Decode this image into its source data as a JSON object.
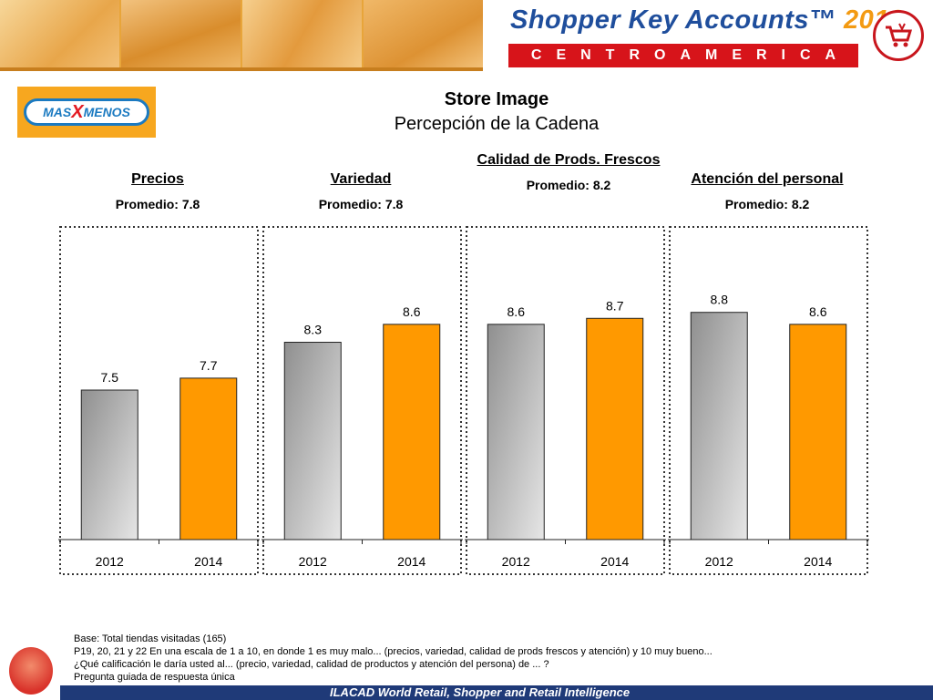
{
  "header": {
    "brand_name": "Shopper Key Accounts",
    "brand_tm": "™",
    "brand_year": "2012",
    "brand_region": "CENTROAMERICA"
  },
  "logo": {
    "part1": "MAS",
    "part2": "X",
    "part3": "MENOS"
  },
  "title": "Store Image",
  "subtitle": "Percepción de la Cadena",
  "colors": {
    "bar_2012": "#b5b5b5",
    "bar_2014": "#ff9900",
    "banner_blue": "#1f4e9c",
    "banner_red": "#d7141a",
    "footer_blue": "#1f3a78"
  },
  "chart_data": [
    {
      "type": "bar",
      "title": "Precios",
      "note": "Promedio: 7.8",
      "categories": [
        "2012",
        "2014"
      ],
      "values": [
        7.5,
        7.7
      ],
      "ylim": [
        0,
        10
      ],
      "grid": false
    },
    {
      "type": "bar",
      "title": "Variedad",
      "note": "Promedio: 7.8",
      "categories": [
        "2012",
        "2014"
      ],
      "values": [
        8.3,
        8.6
      ],
      "ylim": [
        0,
        10
      ],
      "grid": false
    },
    {
      "type": "bar",
      "title": "Calidad de Prods. Frescos",
      "note": "Promedio: 8.2",
      "categories": [
        "2012",
        "2014"
      ],
      "values": [
        8.6,
        8.7
      ],
      "ylim": [
        0,
        10
      ],
      "grid": false
    },
    {
      "type": "bar",
      "title": "Atención del personal",
      "note": "Promedio: 8.2",
      "categories": [
        "2012",
        "2014"
      ],
      "values": [
        8.8,
        8.6
      ],
      "ylim": [
        0,
        10
      ],
      "grid": false
    }
  ],
  "notes": [
    "Base: Total tiendas visitadas (165)",
    "P19, 20, 21 y 22 En una escala de 1 a 10, en donde 1 es muy malo... (precios, variedad, calidad de prods frescos y atención)  y 10 muy bueno...",
    "¿Qué calificación le daría usted al... (precio, variedad, calidad de productos y atención del persona) de ... ?",
    "Pregunta guiada de respuesta única"
  ],
  "footer": "ILACAD World Retail, Shopper and Retail Intelligence"
}
